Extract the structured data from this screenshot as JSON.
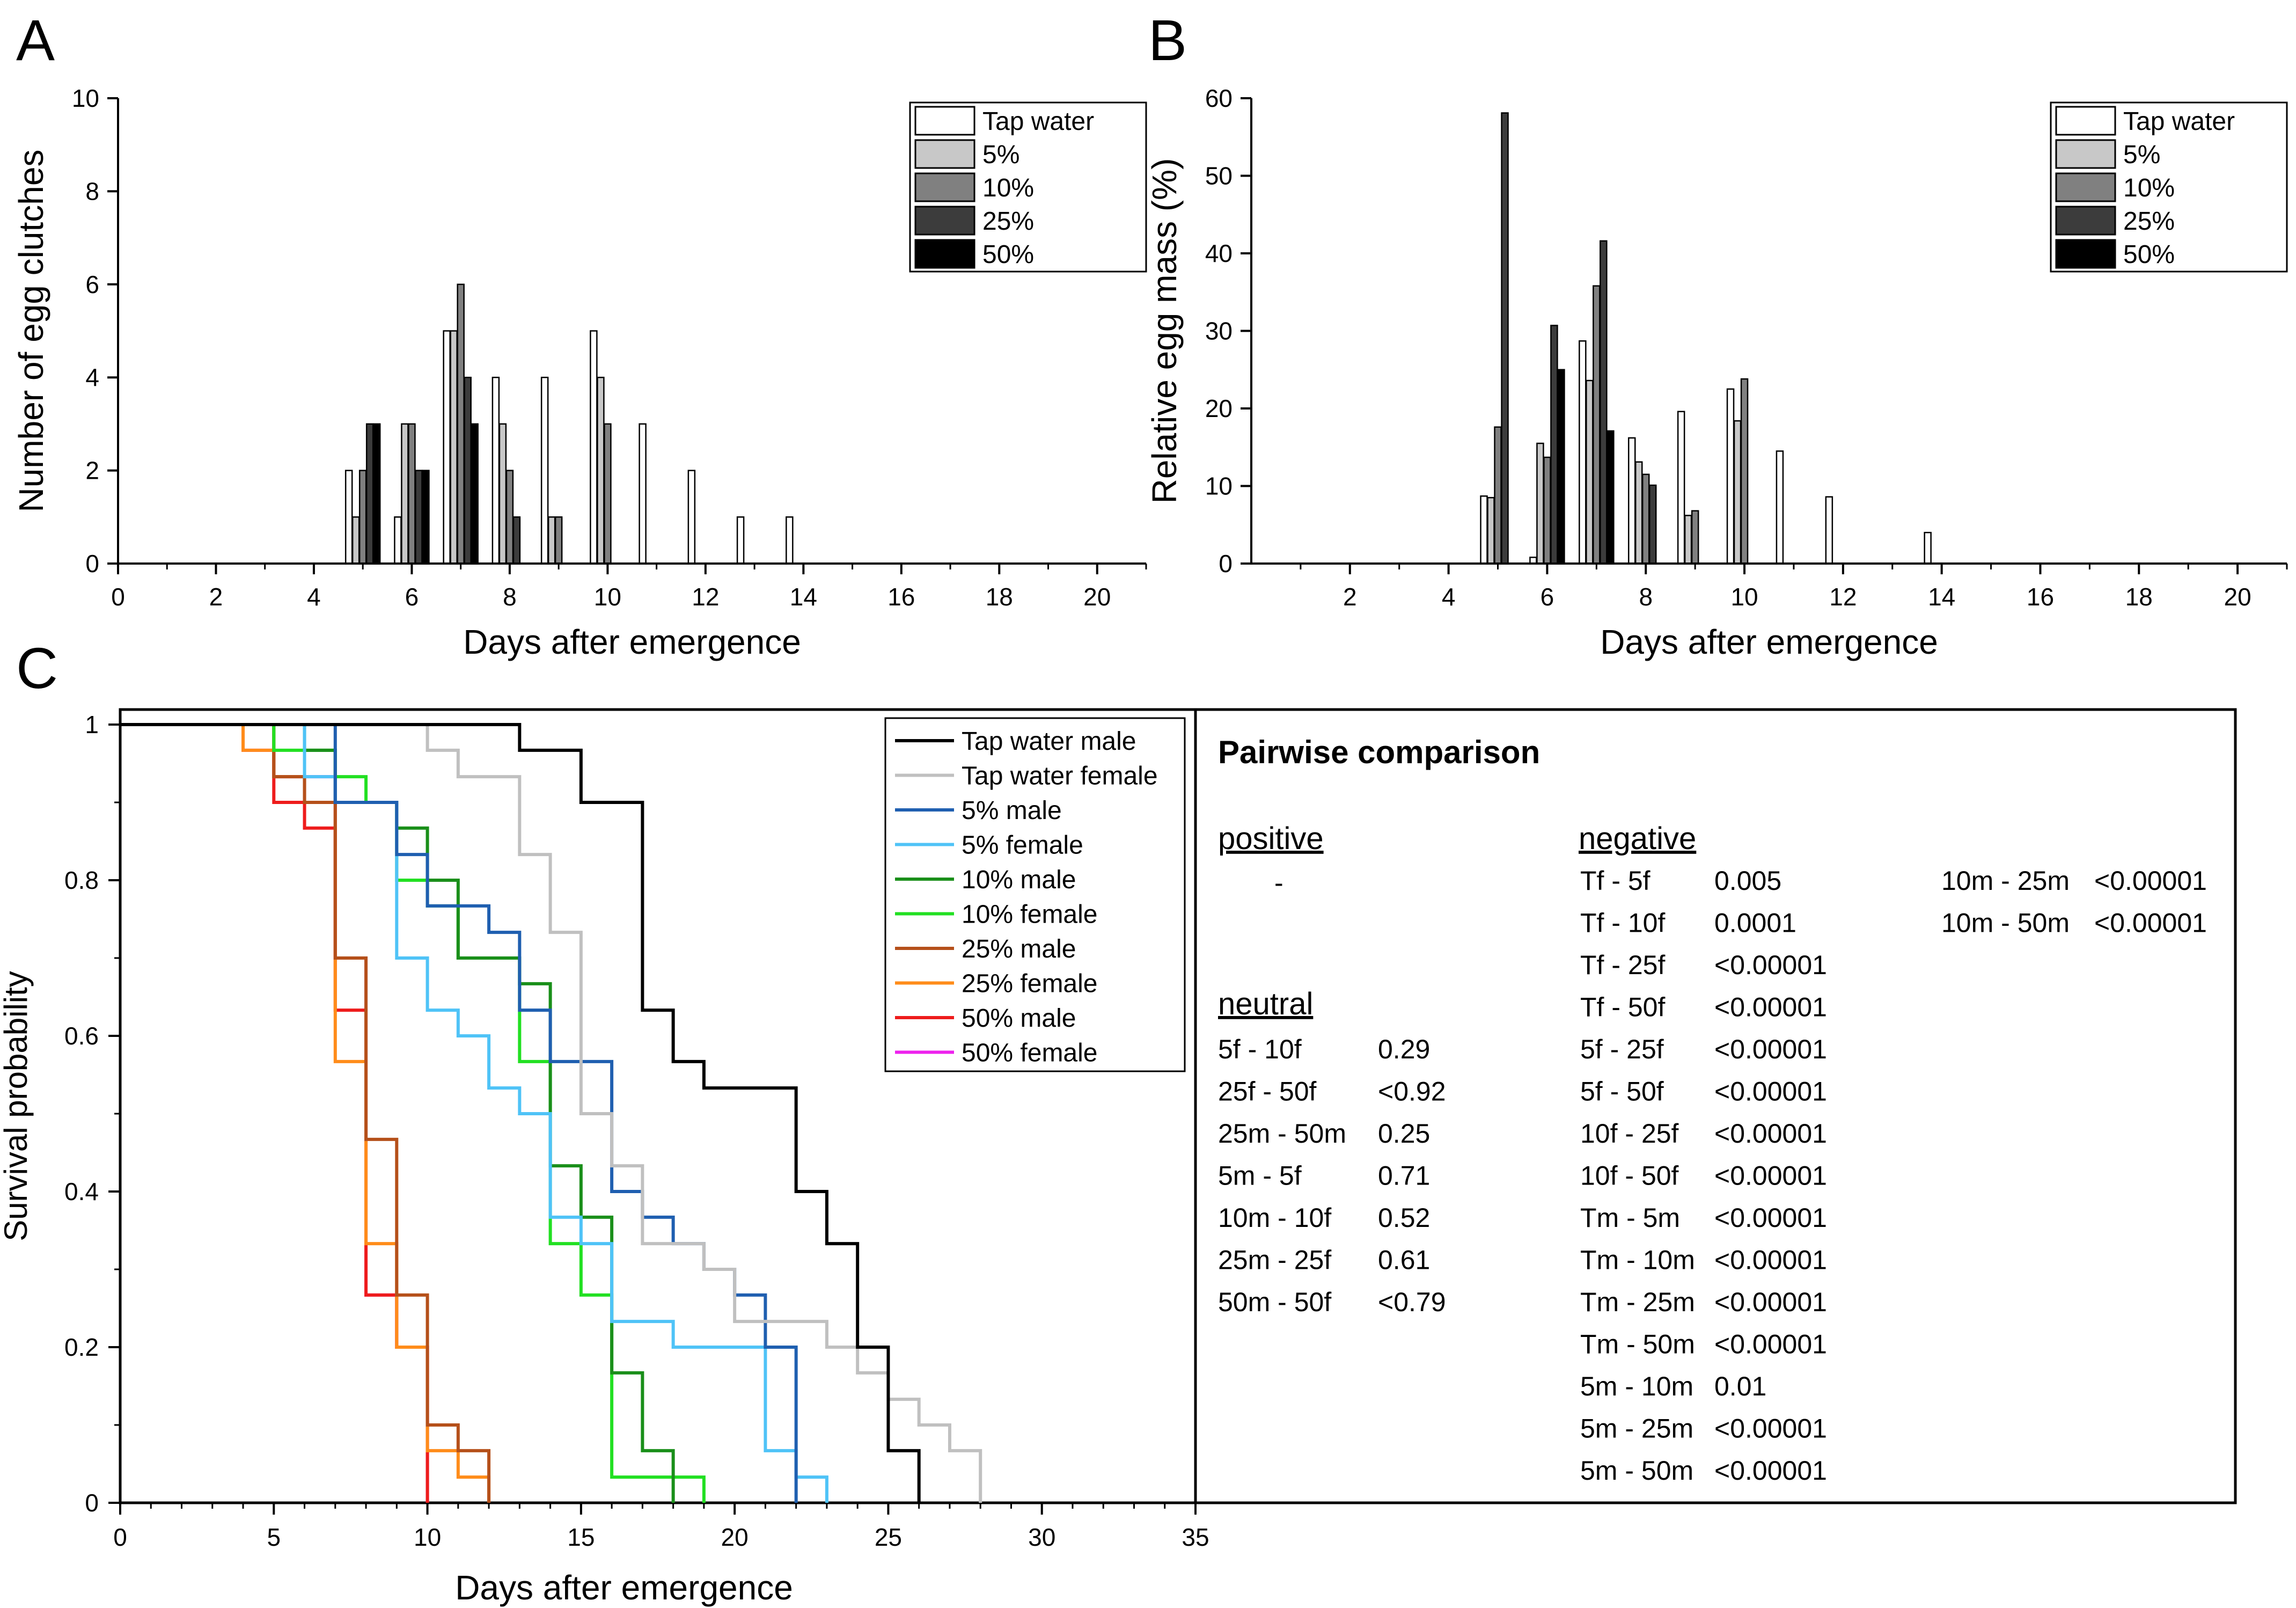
{
  "panels": {
    "a": "A",
    "b": "B",
    "c": "C"
  },
  "legend_groups": [
    "Tap water",
    "5%",
    "10%",
    "25%",
    "50%"
  ],
  "group_colors": [
    "#ffffff",
    "#c8c8c8",
    "#808080",
    "#3c3c3c",
    "#000000"
  ],
  "survival_colors": [
    "#000000",
    "#c0c0c0",
    "#1f5fb0",
    "#4fc3f7",
    "#1a8f1a",
    "#22e022",
    "#b5501a",
    "#ff8c1a",
    "#ee1c1c",
    "#ee22ee"
  ],
  "chart_data": [
    {
      "type": "bar",
      "title": "",
      "xlabel": "Days after emergence",
      "ylabel": "Number of egg clutches",
      "xlim": [
        0,
        21
      ],
      "ylim": [
        0,
        10
      ],
      "xticks": [
        "0",
        "2",
        "4",
        "6",
        "8",
        "10",
        "12",
        "14",
        "16",
        "18",
        "20"
      ],
      "yticks": [
        "0",
        "2",
        "4",
        "6",
        "8",
        "10"
      ],
      "legend": [
        "Tap water",
        "5%",
        "10%",
        "25%",
        "50%"
      ],
      "legend_position": "top-right",
      "series": [
        {
          "name": "Tap water",
          "points": [
            [
              5,
              2
            ],
            [
              6,
              1
            ],
            [
              7,
              5
            ],
            [
              8,
              4
            ],
            [
              9,
              4
            ],
            [
              10,
              5
            ],
            [
              11,
              3
            ],
            [
              12,
              2
            ],
            [
              13,
              1
            ],
            [
              14,
              1
            ]
          ]
        },
        {
          "name": "5%",
          "points": [
            [
              5,
              1
            ],
            [
              6,
              3
            ],
            [
              7,
              5
            ],
            [
              8,
              3
            ],
            [
              9,
              1
            ],
            [
              10,
              4
            ]
          ]
        },
        {
          "name": "10%",
          "points": [
            [
              5,
              2
            ],
            [
              6,
              3
            ],
            [
              7,
              6
            ],
            [
              8,
              2
            ],
            [
              9,
              1
            ],
            [
              10,
              3
            ]
          ]
        },
        {
          "name": "25%",
          "points": [
            [
              5,
              3
            ],
            [
              6,
              2
            ],
            [
              7,
              4
            ],
            [
              8,
              1
            ]
          ]
        },
        {
          "name": "50%",
          "points": [
            [
              5,
              3
            ],
            [
              6,
              2
            ],
            [
              7,
              3
            ]
          ]
        }
      ]
    },
    {
      "type": "bar",
      "title": "",
      "xlabel": "Days after emergence",
      "ylabel": "Relative egg mass (%)",
      "xlim": [
        0,
        21
      ],
      "ylim": [
        0,
        60
      ],
      "xticks": [
        "2",
        "4",
        "6",
        "8",
        "10",
        "12",
        "14",
        "16",
        "18",
        "20"
      ],
      "yticks": [
        "0",
        "10",
        "20",
        "30",
        "40",
        "50",
        "60"
      ],
      "legend": [
        "Tap water",
        "5%",
        "10%",
        "25%",
        "50%"
      ],
      "legend_position": "top-right",
      "series": [
        {
          "name": "Tap water",
          "points": [
            [
              5,
              8.7
            ],
            [
              6,
              0.8
            ],
            [
              7,
              28.7
            ],
            [
              8,
              16.2
            ],
            [
              9,
              19.6
            ],
            [
              10,
              22.5
            ],
            [
              11,
              14.5
            ],
            [
              12,
              8.6
            ],
            [
              14,
              4
            ]
          ]
        },
        {
          "name": "5%",
          "points": [
            [
              5,
              8.5
            ],
            [
              6,
              15.5
            ],
            [
              7,
              23.6
            ],
            [
              8,
              13.1
            ],
            [
              9,
              6.2
            ],
            [
              10,
              18.4
            ]
          ]
        },
        {
          "name": "10%",
          "points": [
            [
              5,
              17.6
            ],
            [
              6,
              13.7
            ],
            [
              7,
              35.8
            ],
            [
              8,
              11.5
            ],
            [
              9,
              6.8
            ],
            [
              10,
              23.8
            ]
          ]
        },
        {
          "name": "25%",
          "points": [
            [
              5,
              58.1
            ],
            [
              6,
              30.7
            ],
            [
              7,
              41.6
            ],
            [
              8,
              10.1
            ]
          ]
        },
        {
          "name": "50%",
          "points": [
            [
              6,
              25
            ],
            [
              7,
              17.1
            ]
          ]
        }
      ]
    },
    {
      "type": "line",
      "title": "",
      "xlabel": "Days after emergence",
      "ylabel": "Survival probability",
      "xlim": [
        0,
        35
      ],
      "ylim": [
        0,
        1
      ],
      "xticks": [
        "0",
        "5",
        "10",
        "15",
        "20",
        "25",
        "30",
        "35"
      ],
      "yticks": [
        "0",
        "0.2",
        "0.4",
        "0.6",
        "0.8",
        "1"
      ],
      "legend_position": "top-right",
      "series": [
        {
          "name": "Tap water male",
          "points": [
            [
              0,
              1
            ],
            [
              13,
              0.967
            ],
            [
              15,
              0.9
            ],
            [
              17,
              0.633
            ],
            [
              18,
              0.567
            ],
            [
              19,
              0.533
            ],
            [
              22,
              0.4
            ],
            [
              23,
              0.333
            ],
            [
              24,
              0.2
            ],
            [
              25,
              0.067
            ],
            [
              26,
              0
            ]
          ]
        },
        {
          "name": "Tap water female",
          "points": [
            [
              0,
              1
            ],
            [
              10,
              0.967
            ],
            [
              11,
              0.933
            ],
            [
              13,
              0.833
            ],
            [
              14,
              0.733
            ],
            [
              15,
              0.5
            ],
            [
              16,
              0.433
            ],
            [
              17,
              0.333
            ],
            [
              19,
              0.3
            ],
            [
              20,
              0.233
            ],
            [
              23,
              0.2
            ],
            [
              24,
              0.167
            ],
            [
              25,
              0.133
            ],
            [
              26,
              0.1
            ],
            [
              27,
              0.067
            ],
            [
              28,
              0
            ]
          ]
        },
        {
          "name": "5% male",
          "points": [
            [
              0,
              1
            ],
            [
              7,
              0.9
            ],
            [
              9,
              0.833
            ],
            [
              10,
              0.767
            ],
            [
              12,
              0.733
            ],
            [
              13,
              0.633
            ],
            [
              14,
              0.567
            ],
            [
              16,
              0.4
            ],
            [
              17,
              0.367
            ],
            [
              18,
              0.333
            ],
            [
              19,
              0.3
            ],
            [
              20,
              0.267
            ],
            [
              21,
              0.2
            ],
            [
              22,
              0
            ]
          ]
        },
        {
          "name": "5% female",
          "points": [
            [
              0,
              1
            ],
            [
              6,
              0.933
            ],
            [
              7,
              0.9
            ],
            [
              9,
              0.7
            ],
            [
              10,
              0.633
            ],
            [
              11,
              0.6
            ],
            [
              12,
              0.533
            ],
            [
              13,
              0.5
            ],
            [
              14,
              0.367
            ],
            [
              15,
              0.333
            ],
            [
              16,
              0.233
            ],
            [
              18,
              0.2
            ],
            [
              21,
              0.067
            ],
            [
              22,
              0.033
            ],
            [
              23,
              0
            ]
          ]
        },
        {
          "name": "10% male",
          "points": [
            [
              0,
              1
            ],
            [
              6,
              0.967
            ],
            [
              7,
              0.9
            ],
            [
              9,
              0.867
            ],
            [
              10,
              0.8
            ],
            [
              11,
              0.7
            ],
            [
              13,
              0.667
            ],
            [
              14,
              0.433
            ],
            [
              15,
              0.367
            ],
            [
              16,
              0.167
            ],
            [
              17,
              0.067
            ],
            [
              18,
              0
            ]
          ]
        },
        {
          "name": "10% female",
          "points": [
            [
              0,
              1
            ],
            [
              5,
              0.967
            ],
            [
              7,
              0.933
            ],
            [
              8,
              0.9
            ],
            [
              9,
              0.8
            ],
            [
              10,
              0.767
            ],
            [
              11,
              0.7
            ],
            [
              13,
              0.567
            ],
            [
              14,
              0.333
            ],
            [
              15,
              0.267
            ],
            [
              16,
              0.033
            ],
            [
              18,
              0.033
            ],
            [
              19,
              0
            ]
          ]
        },
        {
          "name": "25% male",
          "points": [
            [
              0,
              1
            ],
            [
              5,
              0.933
            ],
            [
              6,
              0.9
            ],
            [
              7,
              0.7
            ],
            [
              8,
              0.467
            ],
            [
              9,
              0.267
            ],
            [
              10,
              0.1
            ],
            [
              11,
              0.067
            ],
            [
              12,
              0
            ]
          ]
        },
        {
          "name": "25% female",
          "points": [
            [
              0,
              1
            ],
            [
              4,
              0.967
            ],
            [
              5,
              0.933
            ],
            [
              6,
              0.9
            ],
            [
              7,
              0.567
            ],
            [
              8,
              0.333
            ],
            [
              9,
              0.2
            ],
            [
              10,
              0.067
            ],
            [
              11,
              0.033
            ],
            [
              12,
              0
            ]
          ]
        },
        {
          "name": "50% male",
          "points": [
            [
              0,
              1
            ],
            [
              5,
              0.9
            ],
            [
              6,
              0.867
            ],
            [
              7,
              0.633
            ],
            [
              8,
              0.267
            ],
            [
              9,
              0.2
            ],
            [
              10,
              0
            ]
          ]
        },
        {
          "name": "50% female",
          "points": [
            [
              0,
              1
            ],
            [
              4,
              0.967
            ],
            [
              5,
              0.933
            ],
            [
              7,
              0.7
            ],
            [
              8,
              0.267
            ],
            [
              9,
              0.2
            ],
            [
              10,
              0
            ]
          ]
        }
      ]
    }
  ],
  "pairwise": {
    "title": "Pairwise comparison",
    "positive_label": "positive",
    "positive_items": [
      "-"
    ],
    "neutral_label": "neutral",
    "neutral_rows": [
      [
        "5f - 10f",
        "0.29"
      ],
      [
        "25f - 50f",
        "<0.92"
      ],
      [
        "25m - 50m",
        "0.25"
      ],
      [
        "5m - 5f",
        "0.71"
      ],
      [
        "10m - 10f",
        "0.52"
      ],
      [
        "25m - 25f",
        "0.61"
      ],
      [
        "50m - 50f",
        "<0.79"
      ]
    ],
    "negative_label": "negative",
    "negative_rows": [
      [
        "Tf - 5f",
        "0.005"
      ],
      [
        "Tf - 10f",
        "0.0001"
      ],
      [
        "Tf - 25f",
        "<0.00001"
      ],
      [
        "Tf - 50f",
        "<0.00001"
      ],
      [
        "5f - 25f",
        "<0.00001"
      ],
      [
        "5f - 50f",
        "<0.00001"
      ],
      [
        "10f - 25f",
        "<0.00001"
      ],
      [
        "10f - 50f",
        "<0.00001"
      ],
      [
        "Tm - 5m",
        "<0.00001"
      ],
      [
        "Tm - 10m",
        "<0.00001"
      ],
      [
        "Tm - 25m",
        "<0.00001"
      ],
      [
        "Tm - 50m",
        "<0.00001"
      ],
      [
        "5m - 10m",
        "0.01"
      ],
      [
        "5m - 25m",
        "<0.00001"
      ],
      [
        "5m - 50m",
        "<0.00001"
      ]
    ],
    "negative_rows_2": [
      [
        "10m - 25m",
        "<0.00001"
      ],
      [
        "10m - 50m",
        "<0.00001"
      ]
    ]
  }
}
